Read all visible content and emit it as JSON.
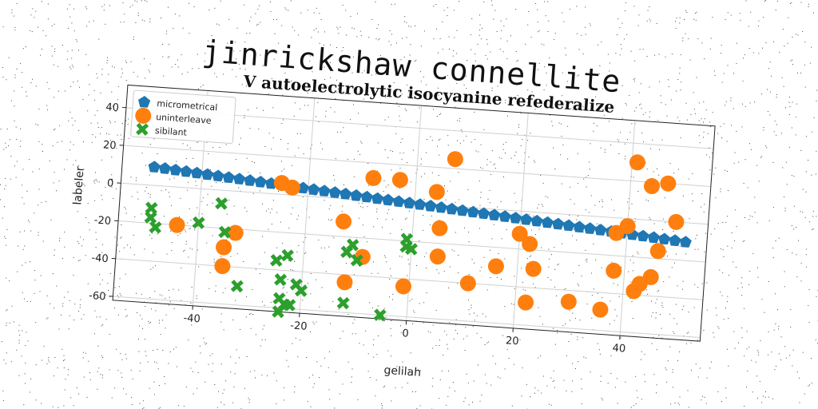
{
  "page": {
    "heading": "jinrickshaw connellite"
  },
  "colors": {
    "series1": "#1f77b4",
    "series2": "#ff7f0e",
    "series3": "#2ca02c",
    "grid": "#d0d0d0"
  },
  "chart_data": {
    "type": "scatter",
    "title": "V autoelectrolytic isocyanine refederalize",
    "xlabel": "gelilah",
    "ylabel": "labeler",
    "xlim": [
      -55,
      55
    ],
    "ylim": [
      -62,
      52
    ],
    "xticks": [
      -40,
      -20,
      0,
      20,
      40
    ],
    "yticks": [
      -60,
      -40,
      -20,
      0,
      20,
      40
    ],
    "grid": true,
    "legend_position": "top-left",
    "series": [
      {
        "name": "micrometrical",
        "marker": "pentagon",
        "x": [
          -49,
          -47,
          -45,
          -43,
          -41,
          -39,
          -37,
          -35,
          -33,
          -31,
          -29,
          -27,
          -25,
          -23,
          -21,
          -19,
          -17,
          -15,
          -13,
          -11,
          -9,
          -7,
          -5,
          -3,
          -1,
          1,
          3,
          5,
          7,
          9,
          11,
          13,
          15,
          17,
          19,
          21,
          23,
          25,
          27,
          29,
          31,
          33,
          35,
          37,
          39,
          41,
          43,
          45,
          47,
          49,
          51
        ],
        "y": [
          9.7,
          9.3,
          8.9,
          8.5,
          8.1,
          7.7,
          7.3,
          6.9,
          6.5,
          6.1,
          5.7,
          5.3,
          4.9,
          4.5,
          4.1,
          3.7,
          3.3,
          2.9,
          2.5,
          2.1,
          1.7,
          1.3,
          0.9,
          0.5,
          0.1,
          -0.3,
          -0.7,
          -1.1,
          -1.5,
          -1.9,
          -2.3,
          -2.7,
          -3.1,
          -3.5,
          -3.9,
          -4.3,
          -4.7,
          -5.1,
          -5.5,
          -5.9,
          -6.3,
          -6.7,
          -7.1,
          -7.5,
          -7.9,
          -8.3,
          -8.7,
          -9.1,
          -9.5,
          -9.9,
          -10.3
        ]
      },
      {
        "name": "uninterleave",
        "marker": "circle",
        "x": [
          -44,
          -35,
          -35,
          -33,
          -25,
          -23,
          -13,
          -12,
          -9,
          -8,
          -3,
          -1,
          4,
          5,
          5,
          7,
          11,
          16,
          20,
          22,
          22,
          23,
          30,
          36,
          38,
          38,
          40,
          41,
          42,
          43,
          44,
          45,
          46,
          47,
          49
        ],
        "y": [
          -20,
          -30,
          -40,
          -22,
          6,
          4,
          -12,
          -44,
          -30,
          12,
          12,
          -44,
          7,
          -12,
          -27,
          25,
          -40,
          -30,
          -12,
          -48,
          -17,
          -30,
          -46,
          -49,
          -8,
          -28,
          -4,
          30,
          -38,
          -34,
          18,
          -30,
          -16,
          20,
          0
        ]
      },
      {
        "name": "sibilant",
        "marker": "x",
        "x": [
          -49,
          -49,
          -48,
          -40,
          -36,
          -35,
          -32,
          -25,
          -24,
          -24,
          -24,
          -23,
          -23,
          -22,
          -21,
          -20,
          -12,
          -12,
          -11,
          -10,
          -5,
          -1,
          -1,
          0
        ],
        "y": [
          -12,
          -17,
          -22,
          -18,
          -7,
          -22,
          -50,
          -35,
          -45,
          -55,
          -62,
          -32,
          -58,
          -58,
          -47,
          -50,
          -55,
          -28,
          -24,
          -32,
          -60,
          -19,
          -23,
          -24
        ]
      }
    ]
  }
}
